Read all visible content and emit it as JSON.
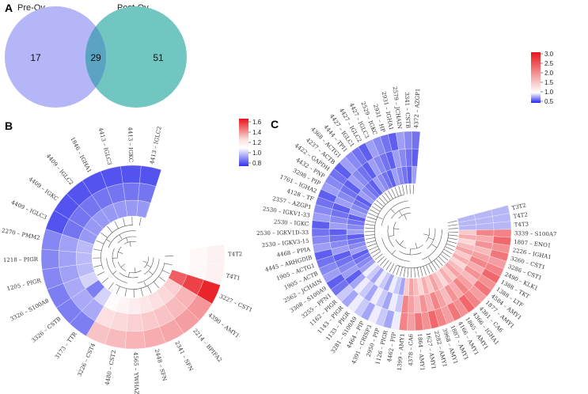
{
  "panels": {
    "A": {
      "letter": "A",
      "left_set": "Pre-Ov",
      "right_set": "Post-Ov",
      "counts": {
        "left_only": "17",
        "both": "29",
        "right_only": "51"
      },
      "colors": {
        "left": "#b4b6f7",
        "right": "#71c6c2",
        "overlap": "#5aa3c2"
      }
    },
    "B": {
      "letter": "B",
      "colorbar": {
        "ticks": [
          "1.6",
          "1.4",
          "1.2",
          "1.0",
          "0.8"
        ],
        "min": 0.75,
        "max": 1.65
      },
      "labels": [
        "T4T2",
        "T4T1",
        "3227 – CST1",
        "4390 – AMY1",
        "2214 – BPIFA2",
        "2341 – SFN",
        "2448 – SFN",
        "4565 – YWHAZ",
        "4480 – CST2",
        "3226 – CST4",
        "3173 – TTR",
        "3326 – CSTB",
        "3326 – S100A8",
        "1205 – PIGR",
        "1218 – PIGR",
        "2270 – PMM2",
        "4409 – IGLC3",
        "4409 – IGKC",
        "4409 – IGLC2",
        "1846 – IGHA1",
        "4413 – IGLC3",
        "4413 – IGKC",
        "4413 – IGLC2"
      ]
    },
    "C": {
      "letter": "C",
      "colorbar": {
        "ticks": [
          "3.0",
          "2.5",
          "2.0",
          "1.5",
          "1.0",
          "0.5"
        ],
        "min": 0.4,
        "max": 3.05
      },
      "labels": [
        "T3T2",
        "T4T2",
        "T4T3",
        "3339 – S100A7",
        "1807 – ENO1",
        "2226 – IGHA1",
        "3260 – CST1",
        "3286 – CST1",
        "2490 – KLK1",
        "1388 – TKT",
        "1388 – LTF",
        "4584 – AMY1",
        "1877 – AMY1",
        "4361 – CA6",
        "4366 – IGHA1",
        "1865 – AMY1",
        "4166 – AMY1",
        "1887 – AMY1",
        "3968 – AMY1",
        "2282 – AMY1",
        "1627 – AMY1",
        "1864 – AMY1",
        "4378 – CA6",
        "1399 – AMY1",
        "4462 – PIP",
        "1126 – PIGR",
        "2950 – PIP",
        "4391 – CRISP3",
        "4464 – PIP",
        "3281 – S100A9",
        "1133 – PIGR",
        "1143 – PIGR",
        "1162 – PIGR",
        "3255 – PFN1",
        "3308 – S100A9",
        "2562 – JCHAIN",
        "1905 – ACTB",
        "1905 – ACTG1",
        "4445 – ARHGDIB",
        "4468 – PPIA",
        "2530 – IGKV3-15",
        "2530 – IGKV1D-33",
        "2530 – IGKC",
        "2530 – IGKV1-33",
        "2357 – AZGP1",
        "4128 – TF",
        "1761 – IGHA2",
        "3298 – PIP",
        "4432 – PNP",
        "4422 – GAPDH",
        "4237 – ACTB",
        "4368 – ACTG1",
        "4444 – TPI1",
        "4427 – IGLC1",
        "4427 – IGLC2",
        "4427 – IGLC3",
        "2529 – IGKC",
        "2931 – HP",
        "2931 – IGHA1",
        "2579 – JCHAIN",
        "3341 – CSTB",
        "4372 – AZGP1"
      ]
    }
  }
}
